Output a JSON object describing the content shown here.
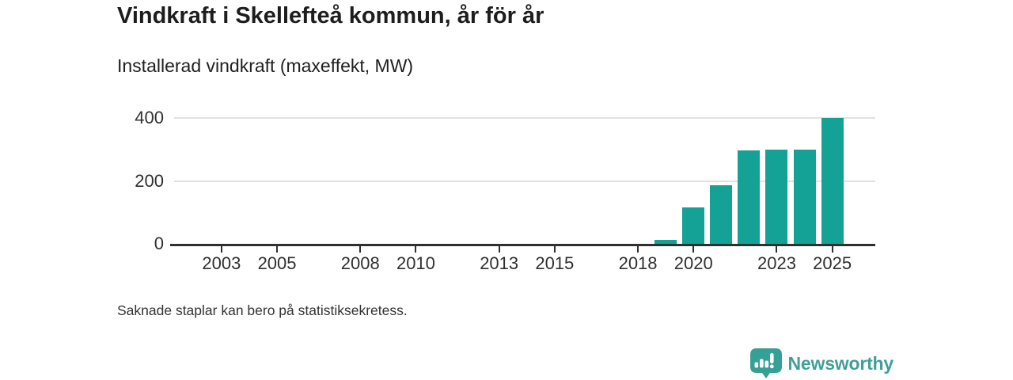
{
  "chart_data": {
    "type": "bar",
    "title": "Vindkraft i Skellefteå kommun, år för år",
    "subtitle": "Installerad vindkraft (maxeffekt, MW)",
    "note": "Saknade staplar kan bero på statistiksekretess.",
    "x": [
      2019,
      2020,
      2021,
      2022,
      2023,
      2024,
      2025
    ],
    "values": [
      12,
      115,
      187,
      297,
      300,
      300,
      400
    ],
    "x_ticks": [
      2003,
      2005,
      2008,
      2010,
      2013,
      2015,
      2018,
      2020,
      2023,
      2025
    ],
    "y_ticks": [
      0,
      200,
      400
    ],
    "xlim": [
      2001.15,
      2026.55
    ],
    "ylim": [
      0,
      400
    ],
    "grid": true,
    "legend_position": "none",
    "bar_color": "#14a296",
    "axis_color": "#2f2f2f",
    "grid_color": "#e1e1e1",
    "tick_text_color": "#303030"
  },
  "logo": {
    "text": "Newsworthy",
    "icon": "speech-bubble-bar-chart-exclamation",
    "color": "#3f9f99"
  }
}
